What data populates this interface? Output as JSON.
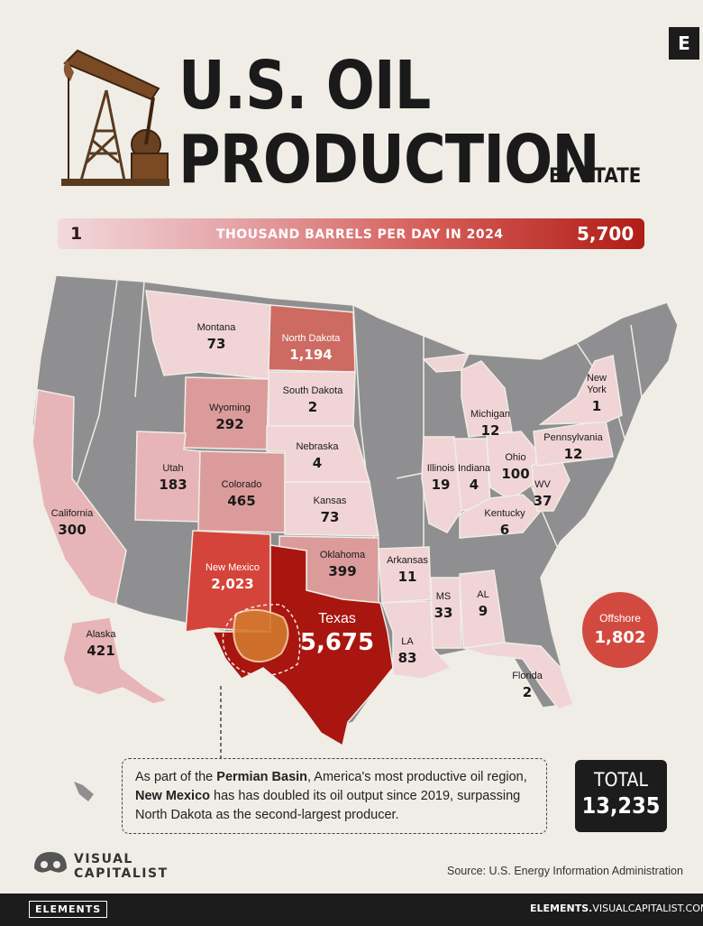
{
  "brand_badge": "E",
  "title": {
    "line1": "U.S. OIL",
    "line2": "PRODUCTION",
    "subtitle": "BY STATE"
  },
  "scale": {
    "min": "1",
    "label": "THOUSAND BARRELS PER DAY IN 2024",
    "max": "5,700",
    "colors": [
      "#f2d9dc",
      "#e5a4a8",
      "#d45a55",
      "#b01d15"
    ]
  },
  "states": [
    {
      "name": "Montana",
      "value": "73"
    },
    {
      "name": "North Dakota",
      "value": "1,194"
    },
    {
      "name": "South Dakota",
      "value": "2"
    },
    {
      "name": "Wyoming",
      "value": "292"
    },
    {
      "name": "Nebraska",
      "value": "4"
    },
    {
      "name": "Utah",
      "value": "183"
    },
    {
      "name": "Colorado",
      "value": "465"
    },
    {
      "name": "Kansas",
      "value": "73"
    },
    {
      "name": "California",
      "value": "300"
    },
    {
      "name": "New Mexico",
      "value": "2,023"
    },
    {
      "name": "Oklahoma",
      "value": "399"
    },
    {
      "name": "Texas",
      "value": "5,675"
    },
    {
      "name": "Arkansas",
      "value": "11"
    },
    {
      "name": "MS",
      "value": "33"
    },
    {
      "name": "AL",
      "value": "9"
    },
    {
      "name": "LA",
      "value": "83"
    },
    {
      "name": "Florida",
      "value": "2"
    },
    {
      "name": "Illinois",
      "value": "19"
    },
    {
      "name": "Indiana",
      "value": "4"
    },
    {
      "name": "Michigan",
      "value": "12"
    },
    {
      "name": "Ohio",
      "value": "100"
    },
    {
      "name": "Kentucky",
      "value": "6"
    },
    {
      "name": "WV",
      "value": "37"
    },
    {
      "name": "Pennsylvania",
      "value": "12"
    },
    {
      "name": "New York",
      "value": "1"
    },
    {
      "name": "Alaska",
      "value": "421"
    }
  ],
  "offshore": {
    "name": "Offshore",
    "value": "1,802"
  },
  "note": {
    "part1": "As part of the ",
    "bold1": "Permian Basin",
    "part2": ", America's most productive oil region, ",
    "bold2": "New Mexico",
    "part3": " has has doubled its oil output since 2019, surpassing North Dakota as the second-largest producer."
  },
  "total": {
    "label": "TOTAL",
    "value": "13,235"
  },
  "publisher": {
    "line1": "VISUAL",
    "line2": "CAPITALIST"
  },
  "source": "Source: U.S. Energy Information Administration",
  "footer": {
    "brand": "ELEMENTS",
    "url_bold": "ELEMENTS.",
    "url_rest": "VISUALCAPITALIST.COM"
  },
  "colors": {
    "no_data": "#8f8f91",
    "light": "#f0d4d6",
    "mid_light": "#e7b5b7",
    "mid": "#dc9b9b",
    "strong": "#cd6a62",
    "high": "#d5443a",
    "max": "#a8160f"
  }
}
